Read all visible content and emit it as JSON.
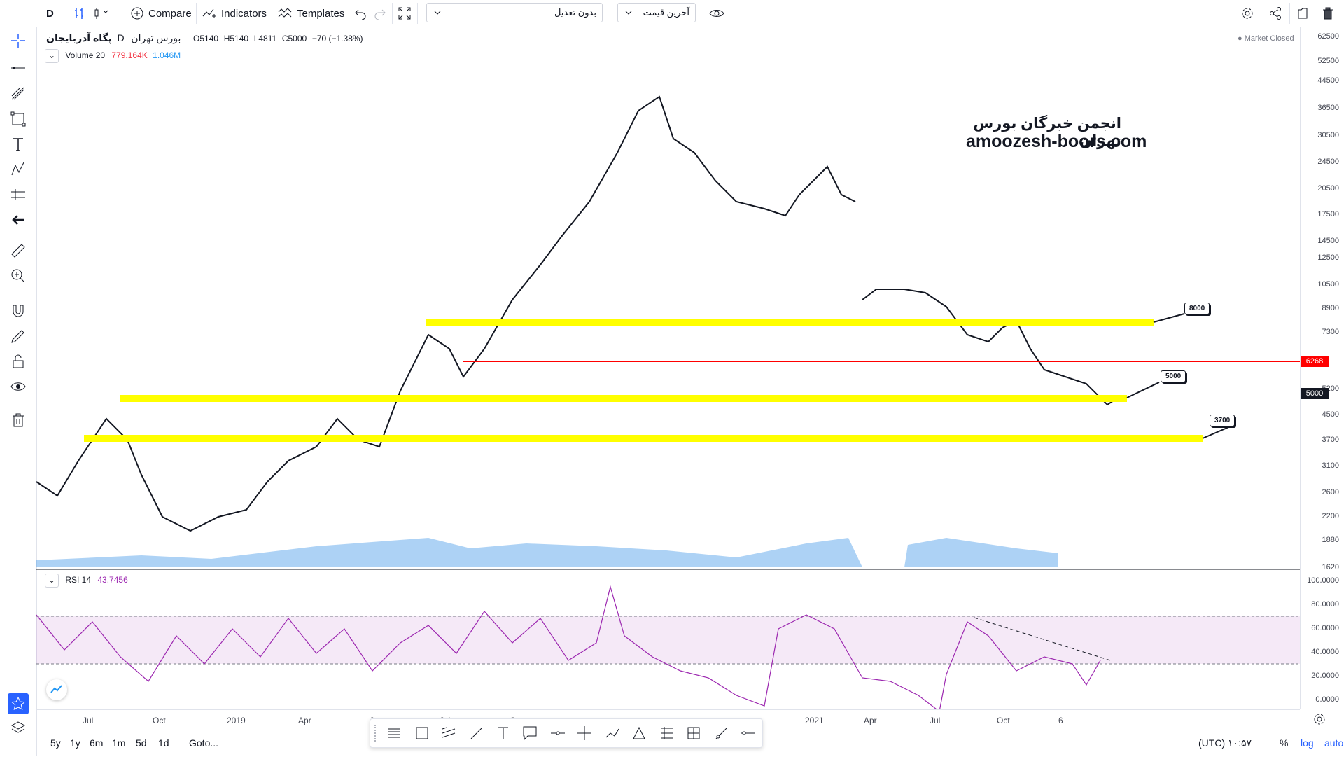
{
  "toolbar": {
    "interval": "D",
    "compare_label": "Compare",
    "indicators_label": "Indicators",
    "templates_label": "Templates",
    "adjust_dropdown": "بدون تعدیل",
    "price_dropdown": "آخرین قیمت"
  },
  "legend": {
    "symbol": "پگاه آذربایجان",
    "exchange": "بورس تهران",
    "interval": "D",
    "ohlc": {
      "open": "O5140",
      "high": "H5140",
      "low": "L4811",
      "close": "C5000",
      "change": "−70 (−1.38%)"
    },
    "market_status": "Market Closed",
    "volume_label": "Volume 20",
    "volume_value": "779.164K",
    "volume_ma": "1.046M",
    "rsi_label": "RSI 14",
    "rsi_value": "43.7456"
  },
  "watermark": {
    "line1": "انجمن خبرگان بورس تهران",
    "line2": "amoozesh-boors.com"
  },
  "price_axis": [
    "62500",
    "52500",
    "44500",
    "36500",
    "30500",
    "24500",
    "20500",
    "17500",
    "14500",
    "12500",
    "10500",
    "8900",
    "7300",
    "6268",
    "5200",
    "5000",
    "4500",
    "3700",
    "3100",
    "2600",
    "2200",
    "1880",
    "1620"
  ],
  "rsi_axis": [
    "100.0000",
    "80.0000",
    "60.0000",
    "40.0000",
    "20.0000",
    "0.0000"
  ],
  "time_axis": [
    "Jul",
    "Oct",
    "2019",
    "Apr",
    "Ju",
    "Jul",
    "Oct",
    "2021",
    "Apr",
    "Jul",
    "Oct",
    "6"
  ],
  "levels": {
    "upper": "8000",
    "middle": "5000",
    "lower": "3700"
  },
  "current_price": "5000",
  "red_level": "6268",
  "bottom": {
    "ranges": [
      "5y",
      "1y",
      "6m",
      "1m",
      "5d",
      "1d"
    ],
    "goto": "Goto...",
    "clock": "۱۰:۵۷ (UTC)",
    "percent": "%",
    "log": "log",
    "auto": "auto"
  },
  "colors": {
    "yellow": "#ffff00",
    "red": "#ff0000",
    "rsi": "#9c27b0",
    "volume": "#4a9be8",
    "blue": "#2962ff"
  }
}
